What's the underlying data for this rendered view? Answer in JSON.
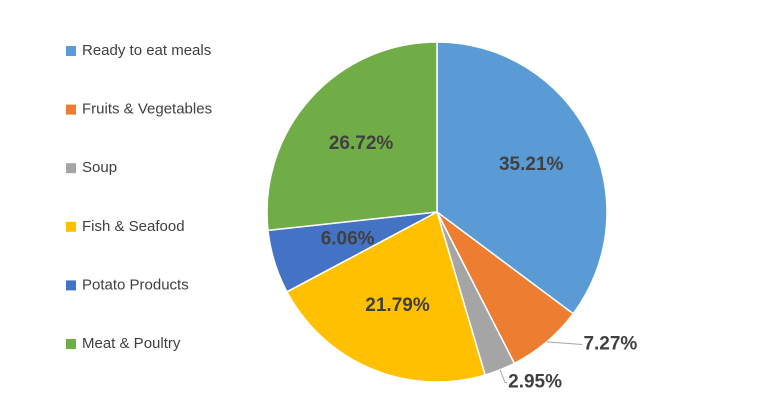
{
  "chart_data": {
    "type": "pie",
    "categories": [
      "Ready to eat meals",
      "Fruits & Vegetables",
      "Soup",
      "Fish & Seafood",
      "Potato Products",
      "Meat & Poultry"
    ],
    "values": [
      35.21,
      7.27,
      2.95,
      21.79,
      6.06,
      26.72
    ],
    "value_labels": [
      "35.21%",
      "7.27%",
      "2.95%",
      "21.79%",
      "6.06%",
      "26.72%"
    ],
    "colors": [
      "#5b9bd5",
      "#ed7d31",
      "#a5a5a5",
      "#ffc000",
      "#4472c4",
      "#70ad47"
    ],
    "legend": "left"
  }
}
